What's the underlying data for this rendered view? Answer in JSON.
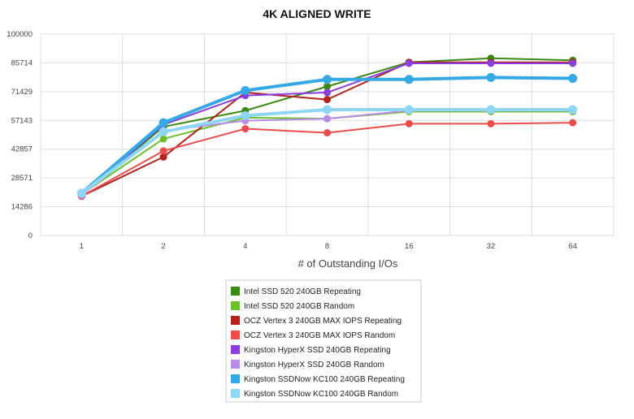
{
  "chart_data": {
    "type": "line",
    "title": "4K ALIGNED WRITE",
    "xlabel": "# of Outstanding I/Os",
    "ylabel": "",
    "categories": [
      "1",
      "2",
      "4",
      "8",
      "16",
      "32",
      "64"
    ],
    "y_ticks": [
      "0",
      "14286",
      "28571",
      "42857",
      "57143",
      "71429",
      "85714",
      "100000"
    ],
    "ylim": [
      0,
      100000
    ],
    "grid": true,
    "legend_position": "bottom",
    "series": [
      {
        "name": "Intel SSD 520 240GB Repeating",
        "color": "#3a8a14",
        "width": 2,
        "values": [
          20000,
          54000,
          62000,
          74000,
          86000,
          88000,
          87000
        ]
      },
      {
        "name": "Intel SSD 520 240GB Random",
        "color": "#6cc02e",
        "width": 2,
        "values": [
          20500,
          48000,
          58500,
          58000,
          61500,
          61500,
          61500
        ]
      },
      {
        "name": "OCZ Vertex 3 240GB MAX IOPS Repeating",
        "color": "#b3221d",
        "width": 2,
        "values": [
          19500,
          39000,
          71000,
          67500,
          86000,
          86000,
          86000
        ]
      },
      {
        "name": "OCZ Vertex 3 240GB MAX IOPS Random",
        "color": "#ea4d4a",
        "width": 2,
        "values": [
          19500,
          42000,
          53000,
          51000,
          55500,
          55500,
          56000
        ]
      },
      {
        "name": "Kingston HyperX SSD 240GB Repeating",
        "color": "#8a3ee0",
        "width": 2,
        "values": [
          20000,
          55000,
          69500,
          71000,
          85500,
          85500,
          85500
        ]
      },
      {
        "name": "Kingston HyperX SSD 240GB Random",
        "color": "#b98ce8",
        "width": 2,
        "values": [
          20000,
          52000,
          57000,
          58000,
          62000,
          62000,
          62000
        ]
      },
      {
        "name": "Kingston SSDNow KC100 240GB Repeating",
        "color": "#35a9e6",
        "width": 4,
        "values": [
          21000,
          56000,
          72000,
          77500,
          77500,
          78500,
          78000
        ]
      },
      {
        "name": "Kingston SSDNow KC100 240GB Random",
        "color": "#8fd6f5",
        "width": 4,
        "values": [
          21000,
          51500,
          59500,
          62500,
          62500,
          62500,
          62500
        ]
      }
    ]
  }
}
